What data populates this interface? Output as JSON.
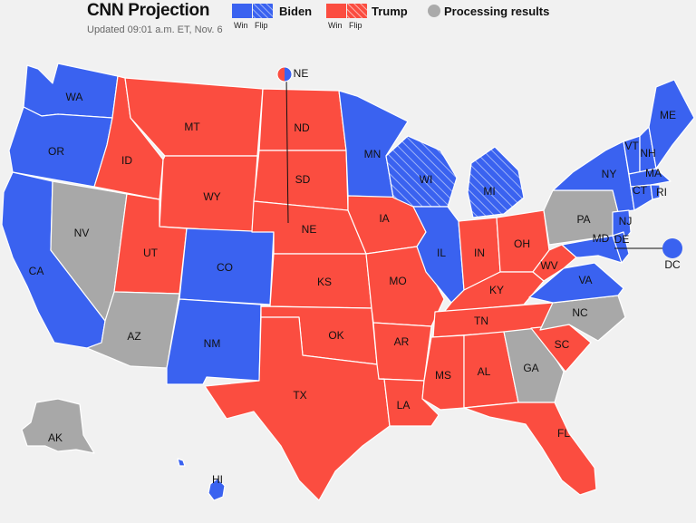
{
  "header": {
    "title": "CNN Projection",
    "updated": "Updated 09:01 a.m. ET, Nov. 6"
  },
  "legend": {
    "biden": {
      "label": "Biden",
      "win": "Win",
      "flip": "Flip"
    },
    "trump": {
      "label": "Trump",
      "win": "Win",
      "flip": "Flip"
    },
    "processing": {
      "label": "Processing results"
    }
  },
  "colors": {
    "biden": "#3a62f0",
    "trump": "#fb4d40",
    "processing": "#a8a8a8",
    "background": "#f1f1f1"
  },
  "states": [
    {
      "abbr": "WA",
      "status": "biden"
    },
    {
      "abbr": "OR",
      "status": "biden"
    },
    {
      "abbr": "CA",
      "status": "biden"
    },
    {
      "abbr": "NV",
      "status": "processing"
    },
    {
      "abbr": "ID",
      "status": "trump"
    },
    {
      "abbr": "MT",
      "status": "trump"
    },
    {
      "abbr": "WY",
      "status": "trump"
    },
    {
      "abbr": "UT",
      "status": "trump"
    },
    {
      "abbr": "AZ",
      "status": "processing"
    },
    {
      "abbr": "CO",
      "status": "biden"
    },
    {
      "abbr": "NM",
      "status": "biden"
    },
    {
      "abbr": "ND",
      "status": "trump"
    },
    {
      "abbr": "SD",
      "status": "trump"
    },
    {
      "abbr": "NE",
      "status": "trump"
    },
    {
      "abbr": "KS",
      "status": "trump"
    },
    {
      "abbr": "OK",
      "status": "trump"
    },
    {
      "abbr": "TX",
      "status": "trump"
    },
    {
      "abbr": "MN",
      "status": "biden"
    },
    {
      "abbr": "IA",
      "status": "trump"
    },
    {
      "abbr": "MO",
      "status": "trump"
    },
    {
      "abbr": "AR",
      "status": "trump"
    },
    {
      "abbr": "LA",
      "status": "trump"
    },
    {
      "abbr": "WI",
      "status": "biden-flip"
    },
    {
      "abbr": "IL",
      "status": "biden"
    },
    {
      "abbr": "MI",
      "status": "biden-flip"
    },
    {
      "abbr": "IN",
      "status": "trump"
    },
    {
      "abbr": "OH",
      "status": "trump"
    },
    {
      "abbr": "KY",
      "status": "trump"
    },
    {
      "abbr": "TN",
      "status": "trump"
    },
    {
      "abbr": "MS",
      "status": "trump"
    },
    {
      "abbr": "AL",
      "status": "trump"
    },
    {
      "abbr": "GA",
      "status": "processing"
    },
    {
      "abbr": "FL",
      "status": "trump"
    },
    {
      "abbr": "SC",
      "status": "trump"
    },
    {
      "abbr": "NC",
      "status": "processing"
    },
    {
      "abbr": "VA",
      "status": "biden"
    },
    {
      "abbr": "WV",
      "status": "trump"
    },
    {
      "abbr": "PA",
      "status": "processing"
    },
    {
      "abbr": "NY",
      "status": "biden"
    },
    {
      "abbr": "VT",
      "status": "biden"
    },
    {
      "abbr": "NH",
      "status": "biden"
    },
    {
      "abbr": "ME",
      "status": "biden"
    },
    {
      "abbr": "MA",
      "status": "biden"
    },
    {
      "abbr": "CT",
      "status": "biden"
    },
    {
      "abbr": "RI",
      "status": "biden"
    },
    {
      "abbr": "NJ",
      "status": "biden"
    },
    {
      "abbr": "DE",
      "status": "biden"
    },
    {
      "abbr": "MD",
      "status": "biden"
    },
    {
      "abbr": "DC",
      "status": "biden"
    },
    {
      "abbr": "AK",
      "status": "processing"
    },
    {
      "abbr": "HI",
      "status": "biden"
    }
  ]
}
